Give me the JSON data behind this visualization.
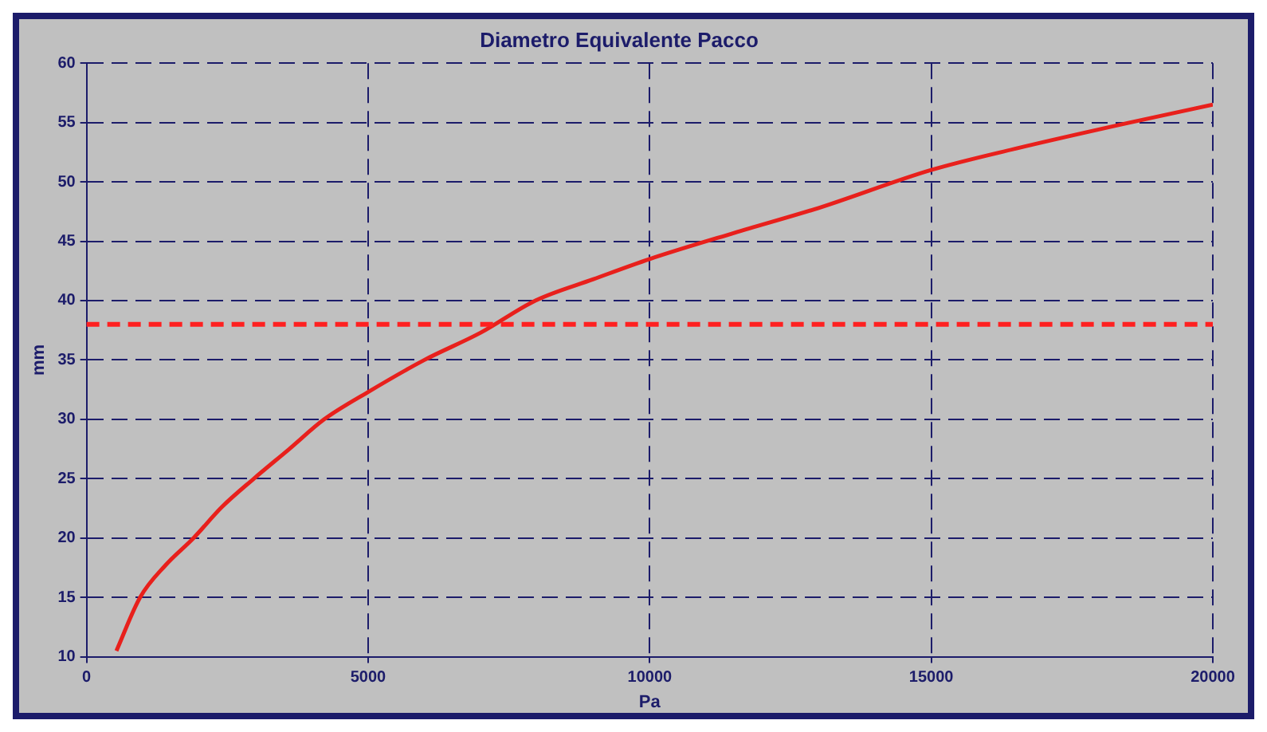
{
  "chart_data": {
    "type": "line",
    "title": "Diametro Equivalente Pacco",
    "xlabel": "Pa",
    "ylabel": "mm",
    "xlim": [
      0,
      20000
    ],
    "xticks": [
      0,
      5000,
      10000,
      15000,
      20000
    ],
    "ylim": [
      10,
      60
    ],
    "yticks": [
      10,
      15,
      20,
      25,
      30,
      35,
      40,
      45,
      50,
      55,
      60
    ],
    "grid": true,
    "legend": false,
    "marker": "none",
    "line_style": "solid",
    "series": [
      {
        "color": "#e8201c",
        "x": [
          530,
          950,
          1400,
          1900,
          2400,
          2970,
          3600,
          4220,
          5000,
          6000,
          7000,
          7970,
          9000,
          10000,
          11500,
          13000,
          15000,
          16500,
          18530,
          20000
        ],
        "values": [
          10.5,
          15,
          17.7,
          20,
          22.6,
          25,
          27.5,
          30,
          32.3,
          35,
          37.3,
          40,
          41.8,
          43.5,
          45.7,
          47.8,
          51,
          52.8,
          55,
          56.5
        ]
      }
    ],
    "ref_lines": [
      {
        "axis": "y",
        "value": 38,
        "color": "#ff2020",
        "line_style": "dashed"
      }
    ]
  }
}
